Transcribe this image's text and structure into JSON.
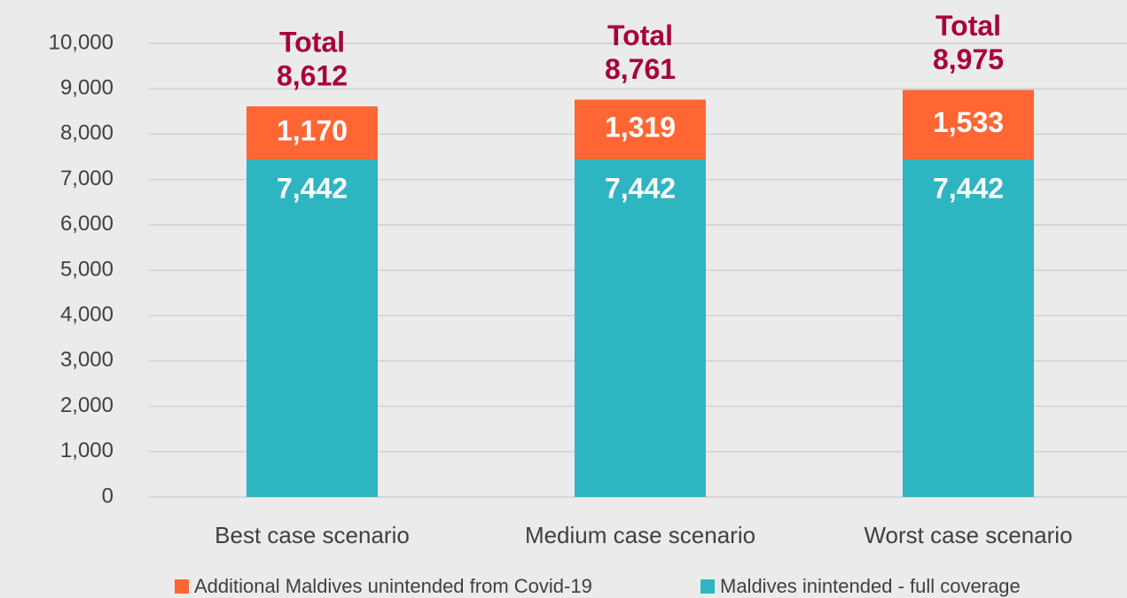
{
  "chart_data": {
    "type": "stacked_bar",
    "categories": [
      "Best case scenario",
      "Medium case scenario",
      "Worst case scenario"
    ],
    "series": [
      {
        "name": "Additional Maldives unintended from Covid-19",
        "color": "#ff6633",
        "values": [
          1170,
          1319,
          1533
        ],
        "value_labels": [
          "1,170",
          "1,319",
          "1,533"
        ]
      },
      {
        "name": "Maldives inintended - full coverage",
        "color": "#2eb5c2",
        "values": [
          7442,
          7442,
          7442
        ],
        "value_labels": [
          "7,442",
          "7,442",
          "7,442"
        ]
      }
    ],
    "total_text": "Total",
    "totals": [
      8612,
      8761,
      8975
    ],
    "total_labels": [
      "8,612",
      "8,761",
      "8,975"
    ],
    "ylim": [
      0,
      10000
    ],
    "yticks": [
      0,
      {
        "value": 1000,
        "label": "1,000"
      },
      {
        "value": 2000,
        "label": "2,000"
      },
      {
        "value": 3000,
        "label": "3,000"
      },
      {
        "value": 4000,
        "label": "4,000"
      },
      {
        "value": 5000,
        "label": "5,000"
      },
      {
        "value": 6000,
        "label": "6,000"
      },
      {
        "value": 7000,
        "label": "7,000"
      },
      {
        "value": 8000,
        "label": "8,000"
      },
      {
        "value": 9000,
        "label": "9,000"
      },
      {
        "value": 10000,
        "label": "10,000"
      }
    ],
    "grid": true,
    "legend": "bottom"
  }
}
